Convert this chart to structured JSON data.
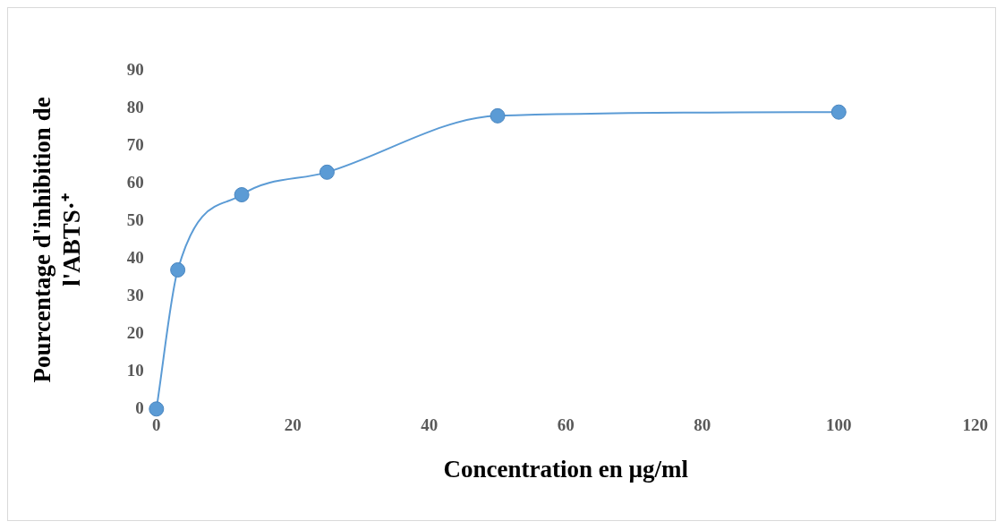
{
  "chart_data": {
    "type": "line",
    "xlabel": "Concentration en µg/ml",
    "ylabel": "Pourcentage d'inhibition de l'ABTS·⁺",
    "x": [
      0,
      3.125,
      12.5,
      25,
      50,
      100
    ],
    "series": [
      {
        "color": "#5b9bd5",
        "values": [
          0,
          37,
          57,
          63,
          78,
          79
        ]
      }
    ],
    "xlim": [
      0,
      120
    ],
    "xticks": [
      0,
      20,
      40,
      60,
      80,
      100,
      120
    ],
    "ylim": [
      0,
      90
    ],
    "yticks": [
      0,
      10,
      20,
      30,
      40,
      50,
      60,
      70,
      80,
      90
    ],
    "grid": false,
    "legend": false,
    "marker": "circle",
    "line_style": "solid"
  }
}
